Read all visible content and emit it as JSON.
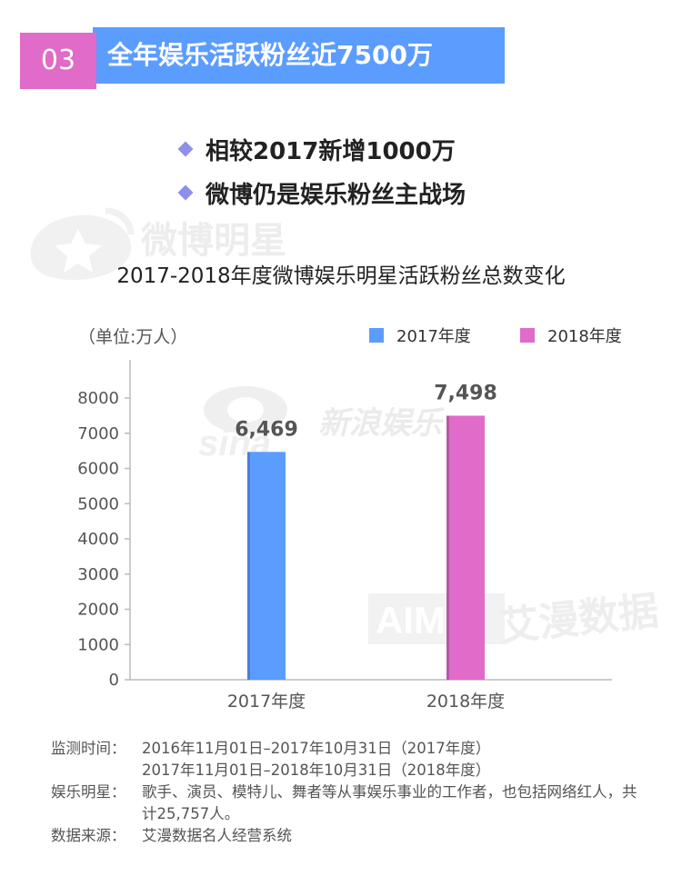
{
  "banner": {
    "number": "03",
    "title": "全年娱乐活跃粉丝近7500万"
  },
  "bullets": [
    "相较2017新增1000万",
    "微博仍是娱乐粉丝主战场"
  ],
  "watermarks": {
    "weibo_star": "微博明星",
    "sina_ent": "新浪娱乐",
    "aiman": "艾漫数据"
  },
  "chart_data": {
    "type": "bar",
    "title": "2017-2018年度微博娱乐明星活跃粉丝总数变化",
    "unit": "（单位:万人）",
    "categories": [
      "2017年度",
      "2018年度"
    ],
    "values": [
      6469,
      7498
    ],
    "value_labels": [
      "6,469",
      "7,498"
    ],
    "series_names": [
      "2017年度",
      "2018年度"
    ],
    "colors": [
      "#5b9cff",
      "#e06bc9"
    ],
    "ylim": [
      0,
      8000
    ],
    "yticks": [
      "0",
      "1000",
      "2000",
      "3000",
      "4000",
      "5000",
      "6000",
      "7000",
      "8000"
    ],
    "legend_position": "top-right",
    "grid": false
  },
  "footer": {
    "period_label": "监测时间：",
    "period_lines": [
      "2016年11月01日–2017年10月31日（2017年度）",
      "2017年11月01日–2018年10月31日（2018年度）"
    ],
    "stars_label": "娱乐明星：",
    "stars_text": "歌手、演员、模特儿、舞者等从事娱乐事业的工作者，也包括网络红人，共计25,757人。",
    "source_label": "数据来源：",
    "source_text": "艾漫数据名人经营系统"
  }
}
